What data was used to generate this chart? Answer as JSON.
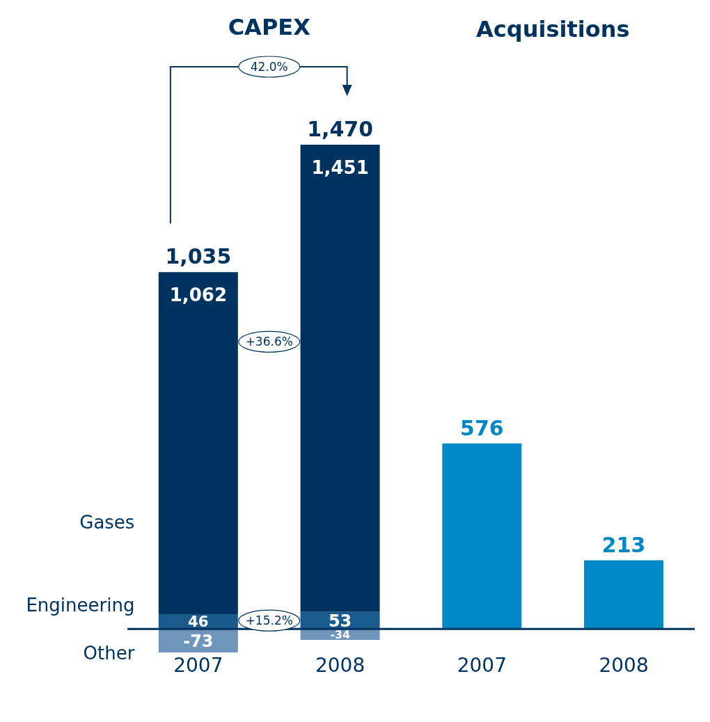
{
  "chart_data": {
    "type": "bar",
    "stacked": true,
    "categories": [
      "2007",
      "2008",
      "2007",
      "2008"
    ],
    "series": [
      {
        "name": "Engineering",
        "color": "#1a5a8c",
        "values": [
          46,
          53,
          null,
          null
        ],
        "value_labels": [
          "46",
          "53",
          null,
          null
        ]
      },
      {
        "name": "Gases",
        "color": "#003360",
        "values": [
          1062,
          1451,
          null,
          null
        ],
        "value_labels": [
          "1,062",
          "1,451",
          null,
          null
        ]
      },
      {
        "name": "Other",
        "color": "#7095bb",
        "values": [
          -73,
          -34,
          null,
          null
        ],
        "value_labels": [
          "-73",
          "-34",
          null,
          null
        ]
      },
      {
        "color": "#0088c4",
        "values": [
          null,
          null,
          576,
          213
        ],
        "value_labels": [
          null,
          null,
          "576",
          "213"
        ]
      }
    ],
    "totals": [
      "1,035",
      "1,470",
      null,
      null
    ],
    "tick_labels": "x",
    "legend": false,
    "grid": false,
    "annotations": [
      "CAPEX",
      "Acquisitions",
      "42.0%",
      "+36.6%",
      "+15.2%"
    ]
  }
}
